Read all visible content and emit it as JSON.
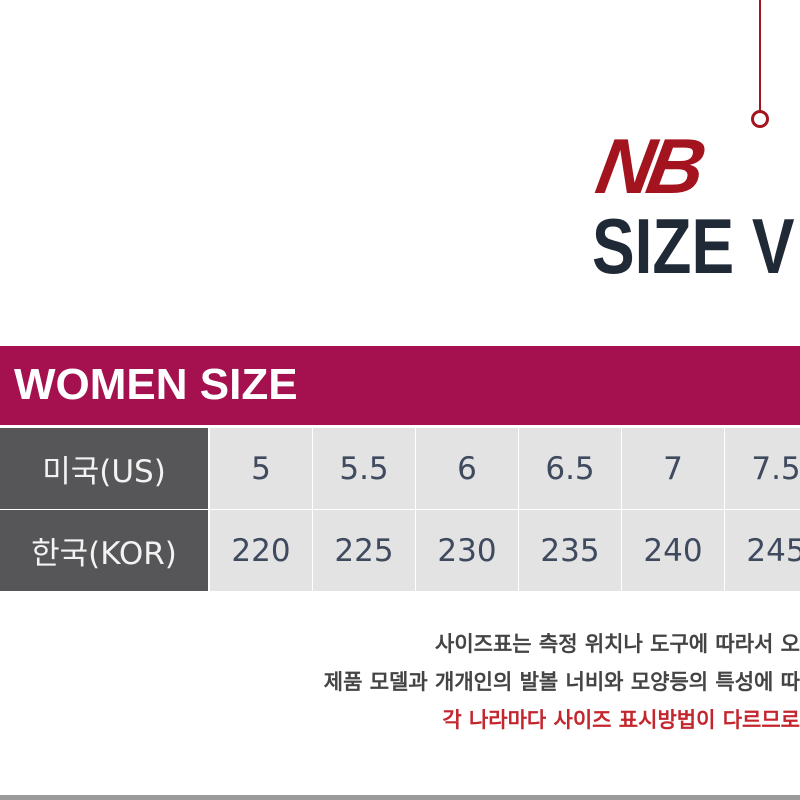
{
  "logo": {
    "brand": "NB",
    "title": "SIZE V"
  },
  "colors": {
    "brand_red": "#a3141f",
    "banner": "#a5114f",
    "label_bg": "#565557",
    "cell_bg": "#e3e3e3"
  },
  "section_title": "WOMEN SIZE",
  "table": {
    "rows": [
      {
        "label": "미국(US)",
        "values": [
          "5",
          "5.5",
          "6",
          "6.5",
          "7",
          "7.5"
        ]
      },
      {
        "label": "한국(KOR)",
        "values": [
          "220",
          "225",
          "230",
          "235",
          "240",
          "245"
        ]
      }
    ]
  },
  "notes": [
    "사이즈표는 측정 위치나 도구에 따라서 오",
    "제품 모델과 개개인의 발볼 너비와 모양등의 특성에 따",
    "각 나라마다 사이즈 표시방법이 다르므로"
  ]
}
